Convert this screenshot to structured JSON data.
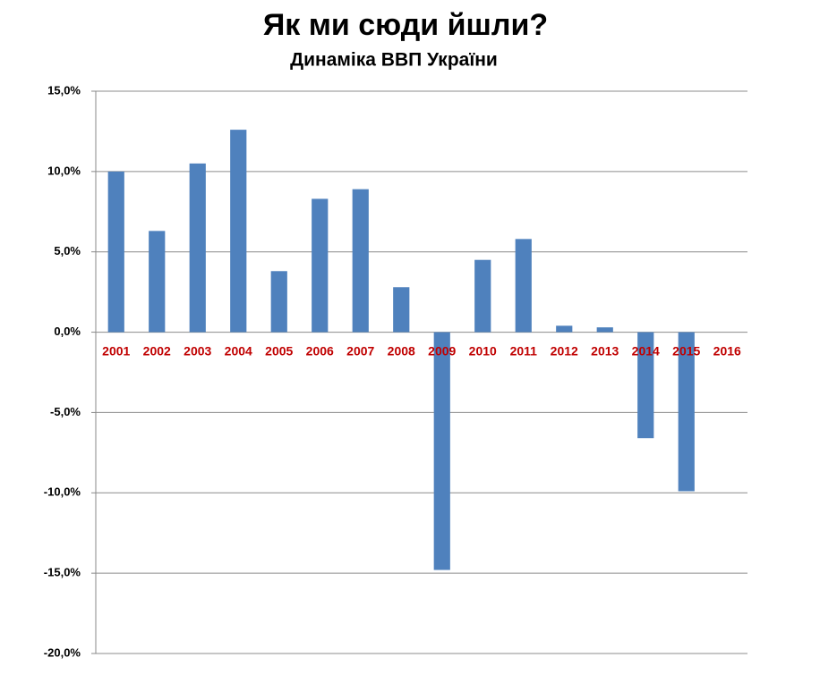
{
  "chart_data": {
    "type": "bar",
    "title": "Як ми сюди йшли?",
    "subtitle": "Динаміка ВВП України",
    "categories": [
      "2001",
      "2002",
      "2003",
      "2004",
      "2005",
      "2006",
      "2007",
      "2008",
      "2009",
      "2010",
      "2011",
      "2012",
      "2013",
      "2014",
      "2015",
      "2016"
    ],
    "values": [
      10.0,
      6.3,
      10.5,
      12.6,
      3.8,
      8.3,
      8.9,
      2.8,
      -14.8,
      4.5,
      5.8,
      0.4,
      0.3,
      -6.6,
      -9.9,
      null
    ],
    "color": "#4f81bd",
    "category_color": "#c00000",
    "ylim": [
      -20,
      15
    ],
    "yticks": [
      {
        "value": -20,
        "label": "-20,0%"
      },
      {
        "value": -15,
        "label": "-15,0%"
      },
      {
        "value": -10,
        "label": "-10,0%"
      },
      {
        "value": -5,
        "label": "-5,0%"
      },
      {
        "value": 0,
        "label": "0,0%"
      },
      {
        "value": 5,
        "label": "5,0%"
      },
      {
        "value": 10,
        "label": "10,0%"
      },
      {
        "value": 15,
        "label": "15,0%"
      }
    ],
    "grid": true
  }
}
